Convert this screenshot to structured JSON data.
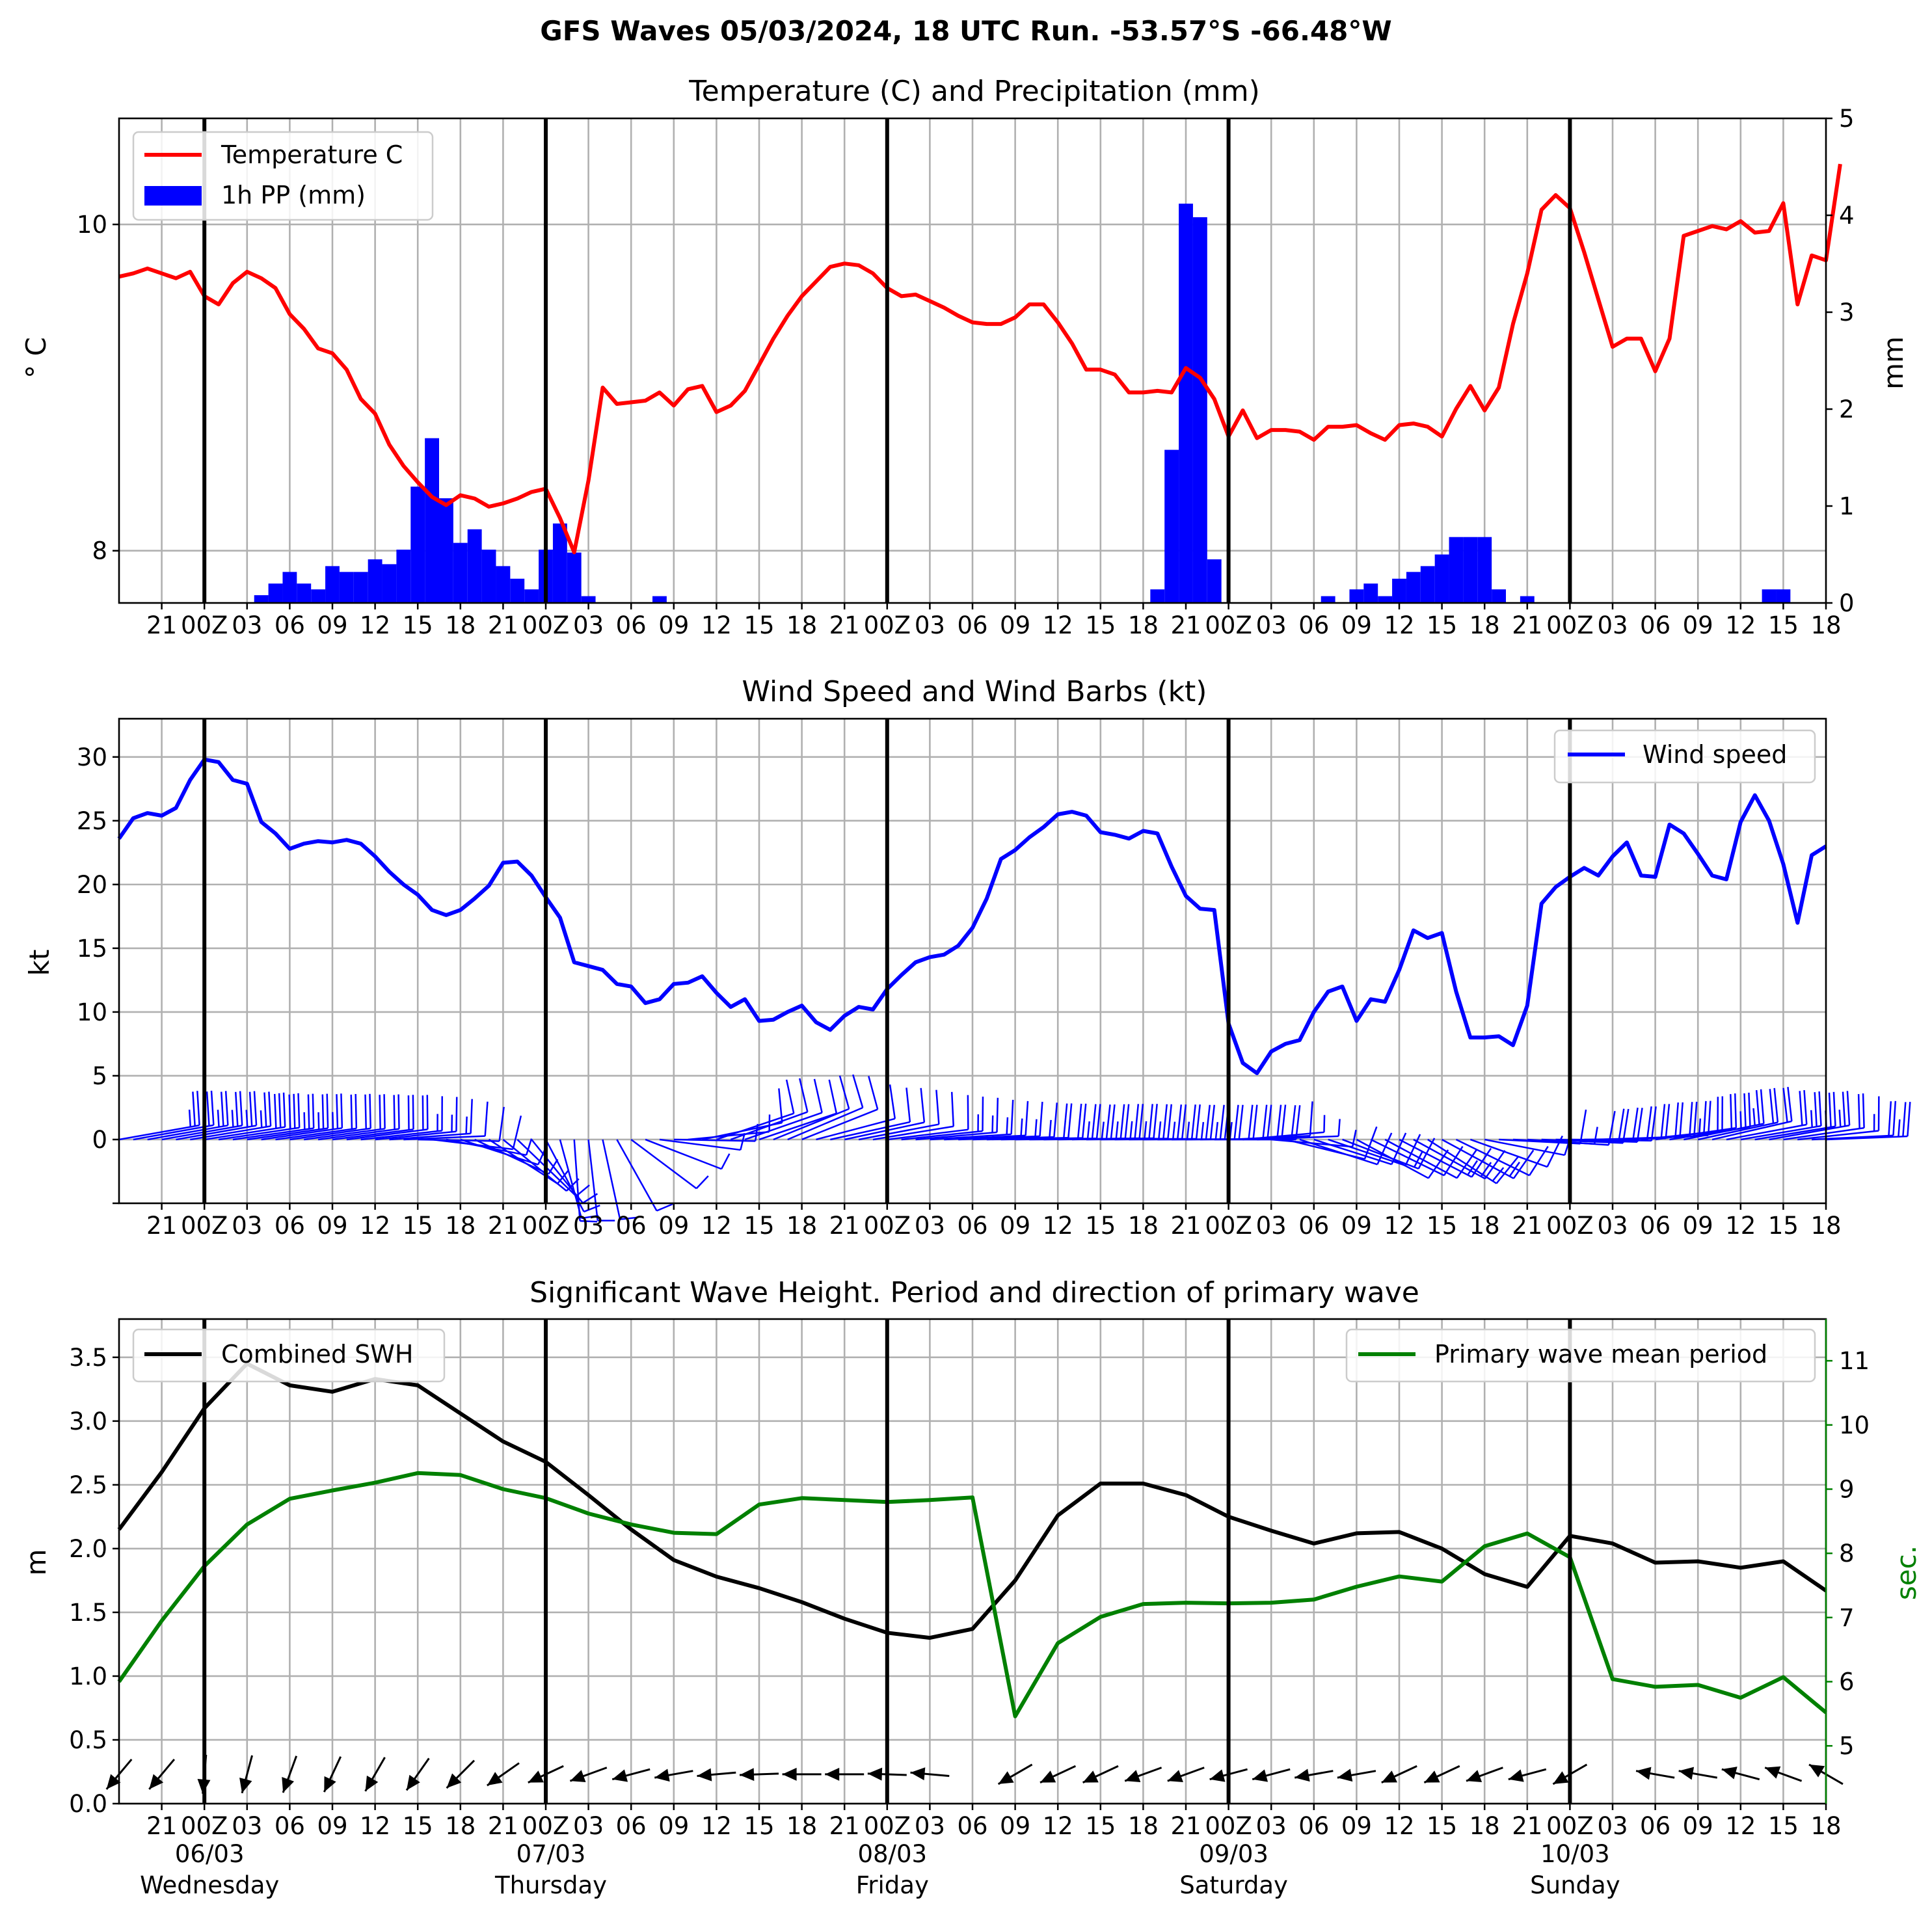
{
  "figure": {
    "suptitle": "GFS Waves 05/03/2024, 18 UTC Run. -53.57°S -66.48°W"
  },
  "x_ticks": [
    "21",
    "00Z",
    "03",
    "06",
    "09",
    "12",
    "15",
    "18",
    "21",
    "00Z",
    "03",
    "06",
    "09",
    "12",
    "15",
    "18",
    "21",
    "00Z",
    "03",
    "06",
    "09",
    "12",
    "15",
    "18",
    "21",
    "00Z",
    "03",
    "06",
    "09",
    "12",
    "15",
    "18",
    "21",
    "00Z",
    "03",
    "06",
    "09",
    "12",
    "15",
    "18"
  ],
  "day_labels": [
    {
      "date": "06/03",
      "day": "Wednesday"
    },
    {
      "date": "07/03",
      "day": "Thursday"
    },
    {
      "date": "08/03",
      "day": "Friday"
    },
    {
      "date": "09/03",
      "day": "Saturday"
    },
    {
      "date": "10/03",
      "day": "Sunday"
    }
  ],
  "colors": {
    "temperature": "#ff0000",
    "precip": "#0000ff",
    "wind": "#0000ff",
    "swh": "#000000",
    "period": "#008000",
    "grid": "#b0b0b0"
  },
  "chart_data": [
    {
      "type": "line",
      "title": "Temperature (C) and Precipitation (mm)",
      "x_axis": "hours after 05/03/2024 18 UTC, 1h steps (0..120)",
      "ylabel": "$^\\circ$C",
      "ylabel_display": "° C",
      "ylabel_right": "mm",
      "ylim": [
        7.68,
        10.65
      ],
      "ylim_right": [
        0,
        5
      ],
      "yticks": [
        8,
        10
      ],
      "yticks_right": [
        0,
        1,
        2,
        3,
        4,
        5
      ],
      "grid": true,
      "legend_position": "top-left",
      "series": [
        {
          "name": "Temperature C",
          "kind": "line",
          "axis": "left",
          "values": [
            9.68,
            9.7,
            9.73,
            9.7,
            9.67,
            9.71,
            9.56,
            9.51,
            9.64,
            9.71,
            9.67,
            9.61,
            9.45,
            9.36,
            9.24,
            9.21,
            9.11,
            8.93,
            8.84,
            8.65,
            8.52,
            8.42,
            8.33,
            8.28,
            8.34,
            8.32,
            8.27,
            8.29,
            8.32,
            8.36,
            8.38,
            8.2,
            7.99,
            8.43,
            9.0,
            8.9,
            8.91,
            8.92,
            8.97,
            8.89,
            8.99,
            9.01,
            8.85,
            8.89,
            8.98,
            9.14,
            9.3,
            9.44,
            9.56,
            9.65,
            9.74,
            9.76,
            9.75,
            9.7,
            9.61,
            9.56,
            9.57,
            9.53,
            9.49,
            9.44,
            9.4,
            9.39,
            9.39,
            9.43,
            9.51,
            9.51,
            9.4,
            9.27,
            9.11,
            9.11,
            9.08,
            8.97,
            8.97,
            8.98,
            8.97,
            9.12,
            9.06,
            8.93,
            8.7,
            8.86,
            8.69,
            8.74,
            8.74,
            8.73,
            8.68,
            8.76,
            8.76,
            8.77,
            8.72,
            8.68,
            8.77,
            8.78,
            8.76,
            8.7,
            8.87,
            9.01,
            8.86,
            9.0,
            9.39,
            9.7,
            10.09,
            10.18,
            10.1,
            9.83,
            9.54,
            9.25,
            9.3,
            9.3,
            9.1,
            9.3,
            9.93,
            9.96,
            9.99,
            9.97,
            10.02,
            9.95,
            9.96,
            10.13,
            9.51,
            9.81,
            9.78,
            10.37
          ]
        },
        {
          "name": "1h PP (mm)",
          "kind": "bar",
          "axis": "right",
          "values": [
            0,
            0,
            0,
            0,
            0,
            0,
            0,
            0,
            0,
            0,
            0.08,
            0.2,
            0.32,
            0.2,
            0.14,
            0.38,
            0.32,
            0.32,
            0.45,
            0.4,
            0.55,
            1.2,
            1.7,
            1.08,
            0.62,
            0.76,
            0.55,
            0.38,
            0.25,
            0.14,
            0.55,
            0.82,
            0.52,
            0.07,
            0,
            0,
            0,
            0,
            0.07,
            0,
            0,
            0,
            0,
            0,
            0,
            0,
            0,
            0,
            0,
            0,
            0,
            0,
            0,
            0,
            0,
            0,
            0,
            0,
            0,
            0,
            0,
            0,
            0,
            0,
            0,
            0,
            0,
            0,
            0,
            0,
            0,
            0,
            0,
            0.14,
            1.58,
            4.12,
            3.98,
            0.45,
            0,
            0,
            0,
            0,
            0,
            0,
            0,
            0.07,
            0,
            0.14,
            0.2,
            0.07,
            0.25,
            0.32,
            0.38,
            0.5,
            0.68,
            0.68,
            0.68,
            0.14,
            0,
            0.07,
            0,
            0,
            0,
            0,
            0,
            0,
            0,
            0,
            0,
            0,
            0,
            0,
            0,
            0,
            0,
            0,
            0.14,
            0.14,
            0,
            0
          ]
        }
      ]
    },
    {
      "type": "line",
      "title": "Wind Speed and Wind Barbs (kt)",
      "x_axis": "hours after 05/03/2024 18 UTC, 1h steps (0..120)",
      "ylabel": "kt",
      "ylim": [
        -5,
        33
      ],
      "yticks": [
        0,
        5,
        10,
        15,
        20,
        25,
        30
      ],
      "grid": true,
      "legend_position": "top-right",
      "series": [
        {
          "name": "Wind speed",
          "values": [
            23.6,
            25.2,
            25.6,
            25.4,
            26.0,
            28.2,
            29.8,
            29.6,
            28.2,
            27.9,
            24.9,
            24.0,
            22.8,
            23.2,
            23.4,
            23.3,
            23.5,
            23.2,
            22.2,
            21.0,
            20.0,
            19.2,
            18.0,
            17.6,
            18.0,
            18.9,
            19.9,
            21.7,
            21.8,
            20.7,
            19.0,
            17.4,
            13.9,
            13.6,
            13.3,
            12.2,
            12.0,
            10.7,
            11.0,
            12.2,
            12.3,
            12.8,
            11.5,
            10.4,
            11.0,
            9.3,
            9.4,
            10.0,
            10.5,
            9.2,
            8.6,
            9.7,
            10.4,
            10.2,
            11.8,
            12.9,
            13.9,
            14.3,
            14.5,
            15.2,
            16.6,
            18.9,
            22.0,
            22.7,
            23.7,
            24.5,
            25.5,
            25.7,
            25.4,
            24.1,
            23.9,
            23.6,
            24.2,
            24.0,
            21.4,
            19.1,
            18.1,
            18.0,
            9.1,
            6.0,
            5.2,
            6.9,
            7.5,
            7.8,
            10.0,
            11.6,
            12.0,
            9.3,
            11.0,
            10.8,
            13.3,
            16.4,
            15.8,
            16.2,
            11.6,
            8.0,
            8.0,
            8.1,
            7.4,
            10.5,
            18.5,
            19.8,
            20.6,
            21.3,
            20.7,
            22.2,
            23.3,
            20.7,
            20.6,
            24.7,
            24.0,
            22.4,
            20.7,
            20.4,
            24.9,
            27.0,
            25.0,
            21.6,
            17.0,
            22.3,
            23.0
          ]
        },
        {
          "name": "Wind barbs",
          "kind": "barbs",
          "u_component_kt": [
            -23.2,
            -24.6,
            -25.1,
            -24.8,
            -25.3,
            -27.1,
            -28.4,
            -28.0,
            -26.5,
            -25.8,
            -22.5,
            -21.3,
            -19.6,
            -19.4,
            -19.0,
            -18.3,
            -17.6,
            -16.5,
            -15.1,
            -13.5,
            -11.8,
            -10.1,
            -8.3,
            -7.2,
            -6.5,
            -6.0,
            -5.6,
            -5.8,
            -5.3,
            -4.2,
            -2.8,
            -1.5,
            -0.4,
            -0.6,
            -1.0,
            -1.9,
            -2.8,
            -3.1,
            -3.9,
            -5.3,
            -6.3,
            -7.6,
            -7.7,
            -7.8,
            -8.9,
            -8.0,
            -8.4,
            -9.2,
            -9.8,
            -8.7,
            -8.2,
            -9.3,
            -10.0,
            -9.8,
            -11.4,
            -12.5,
            -13.5,
            -13.9,
            -14.2,
            -14.9,
            -16.4,
            -18.7,
            -21.8,
            -22.6,
            -23.6,
            -24.4,
            -25.4,
            -25.6,
            -25.3,
            -24.0,
            -23.8,
            -23.5,
            -24.1,
            -23.9,
            -21.3,
            -19.0,
            -18.0,
            -17.9,
            -8.8,
            -5.6,
            -4.9,
            -6.7,
            -7.3,
            -7.8,
            -10.0,
            -11.6,
            -12.0,
            -9.1,
            -10.2,
            -9.7,
            -11.6,
            -13.9,
            -13.0,
            -14.0,
            -10.4,
            -7.3,
            -7.2,
            -7.8,
            -7.4,
            -10.4,
            -18.4,
            -19.7,
            -20.5,
            -21.2,
            -20.6,
            -22.1,
            -23.1,
            -20.4,
            -20.2,
            -24.1,
            -23.2,
            -21.4,
            -19.6,
            -19.3,
            -23.6,
            -25.7,
            -23.9,
            -20.9,
            -16.7,
            -22.1,
            -22.9
          ],
          "v_component_kt": [
            -4.1,
            -4.4,
            -4.4,
            -4.3,
            -4.4,
            -4.5,
            -4.4,
            -4.1,
            -3.7,
            -3.6,
            -3.2,
            -2.9,
            -2.7,
            -2.6,
            -2.5,
            -2.3,
            -2.2,
            -1.8,
            -1.5,
            -1.0,
            -0.5,
            0.2,
            1.0,
            1.4,
            2.1,
            2.8,
            3.6,
            4.7,
            5.1,
            5.2,
            5.3,
            5.5,
            5.7,
            5.3,
            4.6,
            3.4,
            2.1,
            1.2,
            0.5,
            0.1,
            -0.6,
            -1.6,
            -2.6,
            -2.8,
            -3.1,
            -2.7,
            -3.4,
            -3.9,
            -3.9,
            -2.3,
            -1.8,
            -2.0,
            -1.9,
            -1.6,
            -1.4,
            -1.3,
            -1.2,
            -0.9,
            -0.7,
            -0.6,
            -0.5,
            -0.4,
            -0.4,
            -0.3,
            -0.2,
            -0.3,
            -0.4,
            -0.4,
            -0.3,
            -0.2,
            -0.2,
            -0.1,
            -0.1,
            -0.1,
            -0.1,
            -0.1,
            -0.1,
            0.0,
            -0.4,
            -0.5,
            -0.2,
            0.6,
            1.8,
            2.5,
            3.2,
            3.9,
            4.6,
            4.9,
            5.0,
            5.2,
            6.0,
            7.6,
            8.3,
            7.6,
            5.1,
            2.6,
            1.4,
            0.4,
            0.4,
            0.7,
            0.8,
            0.6,
            0.3,
            -0.3,
            -0.7,
            -0.9,
            -1.2,
            -2.2,
            -2.9,
            -3.7,
            -4.6,
            -4.6,
            -4.5,
            -3.6,
            -4.0,
            -4.2,
            -4.2,
            -3.0,
            -1.8,
            -1.1,
            -0.9
          ]
        }
      ]
    },
    {
      "type": "line",
      "title": "Significant Wave Height. Period and direction of primary wave",
      "x_axis": "hours after 05/03/2024 18 UTC, 3h steps",
      "ylabel": "m",
      "ylabel_right": "sec.",
      "ylim": [
        0,
        3.8
      ],
      "ylim_right": [
        4.1,
        11.65
      ],
      "yticks": [
        0.0,
        0.5,
        1.0,
        1.5,
        2.0,
        2.5,
        3.0,
        3.5
      ],
      "yticks_right": [
        5,
        6,
        7,
        8,
        9,
        10,
        11
      ],
      "grid": true,
      "legend_positions": {
        "Combined SWH": "top-left",
        "Primary wave mean period": "top-right"
      },
      "x_hours": [
        0,
        3,
        6,
        9,
        12,
        15,
        18,
        21,
        24,
        27,
        30,
        33,
        36,
        39,
        42,
        45,
        48,
        51,
        54,
        57,
        60,
        63,
        66,
        69,
        72,
        75,
        78,
        81,
        84,
        87,
        90,
        93,
        96,
        99,
        102,
        105,
        108,
        111,
        114,
        117,
        120
      ],
      "series": [
        {
          "name": "Combined SWH",
          "axis": "left",
          "values": [
            2.15,
            2.6,
            3.1,
            3.45,
            3.28,
            3.23,
            3.33,
            3.28,
            3.06,
            2.84,
            2.68,
            2.42,
            2.15,
            1.91,
            1.78,
            1.69,
            1.58,
            1.45,
            1.34,
            1.3,
            1.37,
            1.75,
            2.26,
            2.51,
            2.51,
            2.42,
            2.25,
            2.14,
            2.04,
            2.12,
            2.13,
            2.0,
            1.8,
            1.7,
            2.1,
            2.04,
            1.89,
            1.9,
            1.85,
            1.9,
            1.67
          ]
        },
        {
          "name": "Primary wave mean period",
          "axis": "right",
          "values": [
            6.0,
            6.95,
            7.8,
            8.45,
            8.85,
            8.98,
            9.1,
            9.25,
            9.22,
            9.0,
            8.86,
            8.62,
            8.45,
            8.32,
            8.3,
            8.76,
            8.86,
            8.83,
            8.8,
            8.83,
            8.87,
            5.46,
            6.6,
            7.01,
            7.21,
            7.23,
            7.22,
            7.23,
            7.28,
            7.48,
            7.64,
            7.56,
            8.11,
            8.31,
            7.94,
            6.04,
            5.92,
            5.95,
            5.75,
            6.07,
            5.52
          ]
        },
        {
          "name": "Primary wave direction",
          "kind": "arrows",
          "direction_from_deg": [
            40,
            40,
            5,
            15,
            20,
            25,
            30,
            35,
            45,
            55,
            65,
            70,
            75,
            80,
            85,
            88,
            90,
            90,
            92,
            95,
            null,
            60,
            65,
            65,
            70,
            70,
            75,
            75,
            80,
            80,
            65,
            65,
            70,
            75,
            60,
            null,
            100,
            100,
            105,
            110,
            120
          ]
        }
      ]
    }
  ]
}
